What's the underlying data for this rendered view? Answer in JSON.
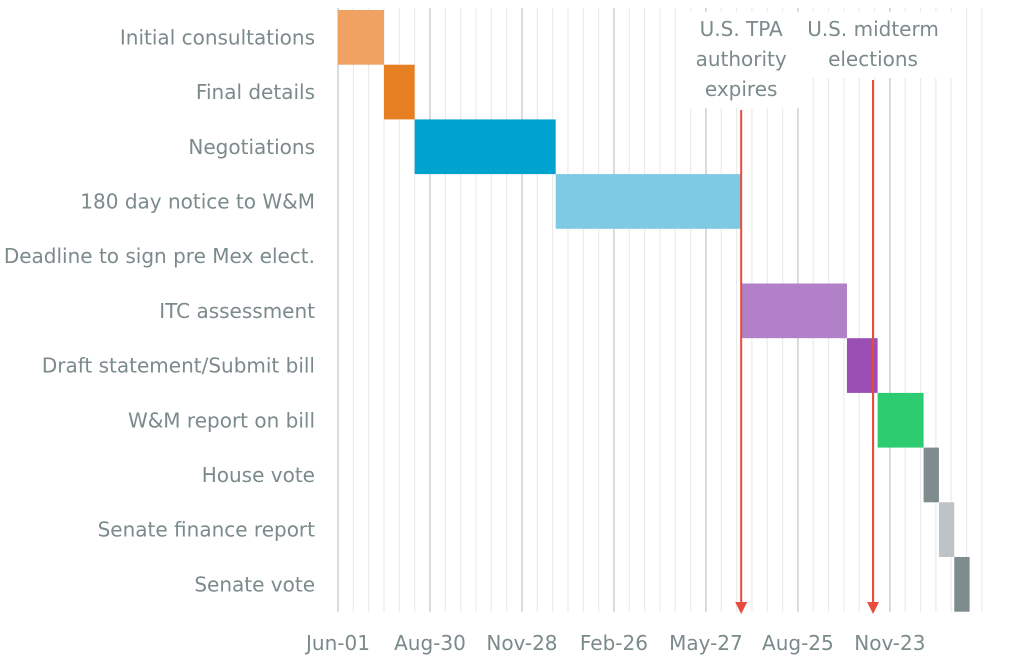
{
  "chart_data": {
    "type": "gantt",
    "title": "",
    "x_unit": "weeks from Jun-01 (weekly gridlines)",
    "xlim": [
      0,
      42
    ],
    "x_ticks": [
      {
        "label": "Jun-01",
        "value": 0
      },
      {
        "label": "Aug-30",
        "value": 6
      },
      {
        "label": "Nov-28",
        "value": 12
      },
      {
        "label": "Feb-26",
        "value": 18
      },
      {
        "label": "May-27",
        "value": 24
      },
      {
        "label": "Aug-25",
        "value": 30
      },
      {
        "label": "Nov-23",
        "value": 36
      }
    ],
    "tasks": [
      {
        "name": "Initial consultations",
        "start": 0,
        "end": 3,
        "color": "#f0a262"
      },
      {
        "name": "Final details",
        "start": 3,
        "end": 5,
        "color": "#e67e22"
      },
      {
        "name": "Negotiations",
        "start": 5,
        "end": 14.2,
        "color": "#00a3d0"
      },
      {
        "name": "180 day notice to W&M",
        "start": 14.2,
        "end": 26.3,
        "color": "#7ecae3"
      },
      {
        "name": "Deadline to sign pre Mex elect.",
        "start": null,
        "end": null,
        "color": "#ffffff"
      },
      {
        "name": "ITC assessment",
        "start": 26.3,
        "end": 33.2,
        "color": "#b180c8"
      },
      {
        "name": "Draft statement/Submit bill",
        "start": 33.2,
        "end": 35.2,
        "color": "#9b4fb5"
      },
      {
        "name": "W&M report on bill",
        "start": 35.2,
        "end": 38.2,
        "color": "#2ecc71"
      },
      {
        "name": "House vote",
        "start": 38.2,
        "end": 39.2,
        "color": "#7f8c8d"
      },
      {
        "name": "Senate finance report",
        "start": 39.2,
        "end": 40.2,
        "color": "#bdc3c7"
      },
      {
        "name": "Senate vote",
        "start": 40.2,
        "end": 41.2,
        "color": "#7f8c8d"
      }
    ],
    "markers": [
      {
        "label_lines": [
          "U.S. TPA",
          "authority",
          "expires"
        ],
        "value": 26.3,
        "color": "#e74c3c"
      },
      {
        "label_lines": [
          "U.S. midterm",
          "elections"
        ],
        "value": 34.9,
        "color": "#e74c3c"
      }
    ],
    "grid": true,
    "legend": "none"
  }
}
